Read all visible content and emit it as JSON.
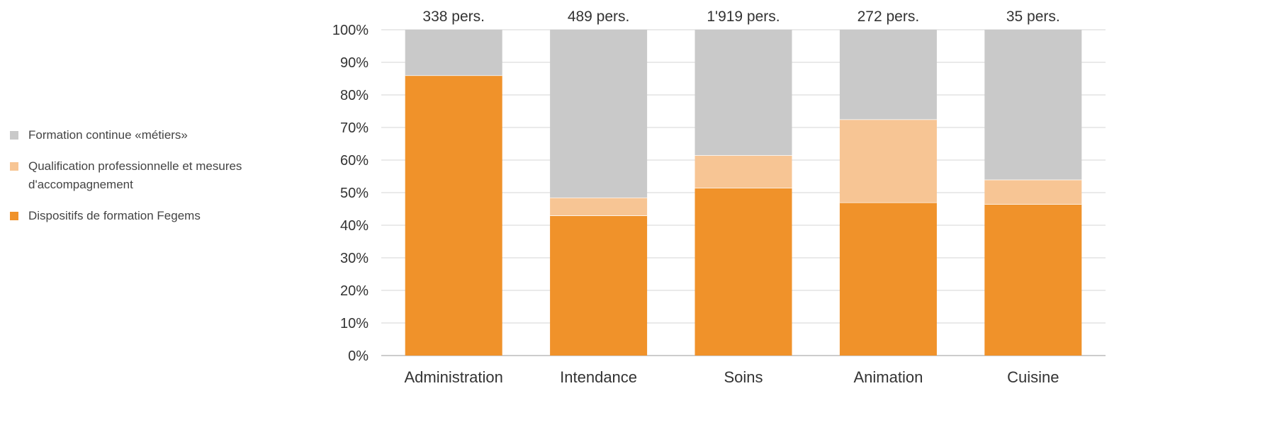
{
  "chart_data": {
    "type": "bar",
    "stacked": true,
    "categories": [
      "Administration",
      "Intendance",
      "Soins",
      "Animation",
      "Cuisine"
    ],
    "top_labels": [
      "338 pers.",
      "489 pers.",
      "1'919 pers.",
      "272 pers.",
      "35 pers."
    ],
    "series": [
      {
        "name": "Dispositifs de formation Fegems",
        "color": "#f0922a",
        "values": [
          86,
          43,
          51.5,
          47,
          46.5
        ]
      },
      {
        "name": "Qualification professionnelle et mesures d'accompagnement",
        "color": "#f7c594",
        "values": [
          0,
          5.5,
          10,
          25.5,
          7.5
        ]
      },
      {
        "name": "Formation continue «métiers»",
        "color": "#c9c9c9",
        "values": [
          14,
          51.5,
          38.5,
          27.5,
          46
        ]
      }
    ],
    "ylim": [
      0,
      100
    ],
    "yticks": [
      "0%",
      "10%",
      "20%",
      "30%",
      "40%",
      "50%",
      "60%",
      "70%",
      "80%",
      "90%",
      "100%"
    ],
    "grid": true,
    "legend_position": "left"
  },
  "legend": [
    {
      "label": "Formation continue «métiers»",
      "color": "#c9c9c9"
    },
    {
      "label": "Qualification professionnelle et mesures d'accompagnement",
      "color": "#f7c594"
    },
    {
      "label": "Dispositifs de formation Fegems",
      "color": "#f0922a"
    }
  ]
}
